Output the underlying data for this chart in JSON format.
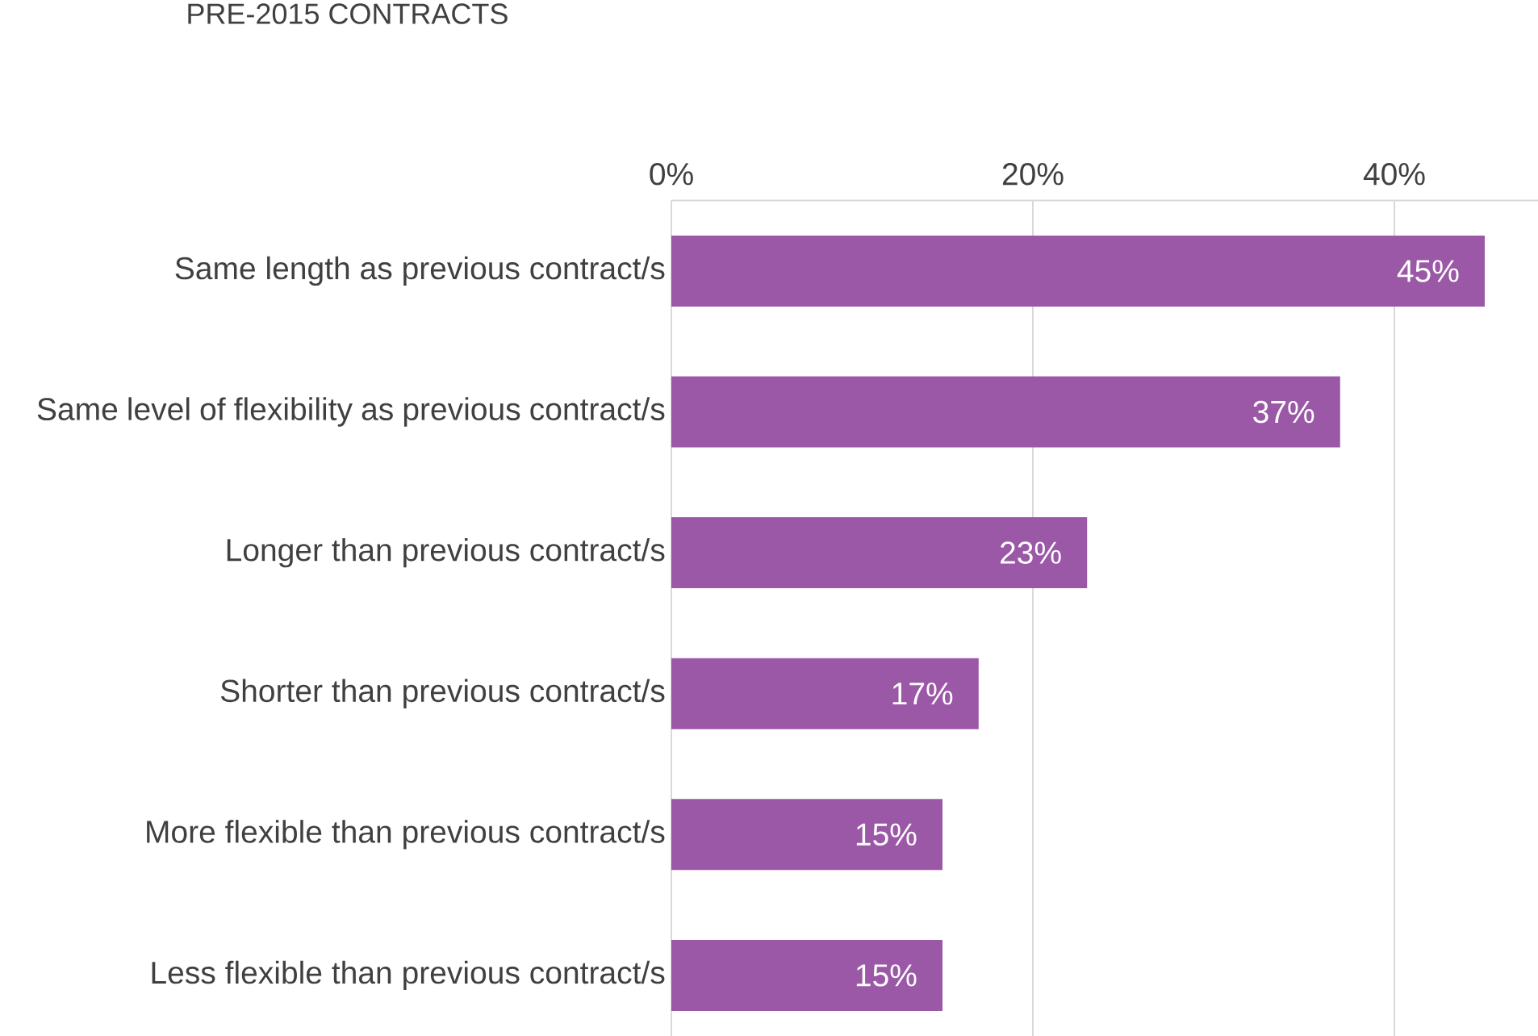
{
  "chart_data": {
    "type": "bar",
    "orientation": "horizontal",
    "title": "PRE-2015 CONTRACTS",
    "categories": [
      "Same length as previous contract/s",
      "Same level of flexibility as previous contract/s",
      "Longer than previous contract/s",
      "Shorter than previous contract/s",
      "More flexible than previous contract/s",
      "Less flexible than previous contract/s"
    ],
    "values": [
      45,
      37,
      23,
      17,
      15,
      15
    ],
    "value_labels": [
      "45%",
      "37%",
      "23%",
      "17%",
      "15%",
      "15%"
    ],
    "color": "#9b58a7",
    "xlim": [
      0,
      48
    ],
    "xticks": [
      {
        "value": 0,
        "label": "0%"
      },
      {
        "value": 20,
        "label": "20%"
      },
      {
        "value": 40,
        "label": "40%"
      }
    ],
    "grid": "x"
  }
}
